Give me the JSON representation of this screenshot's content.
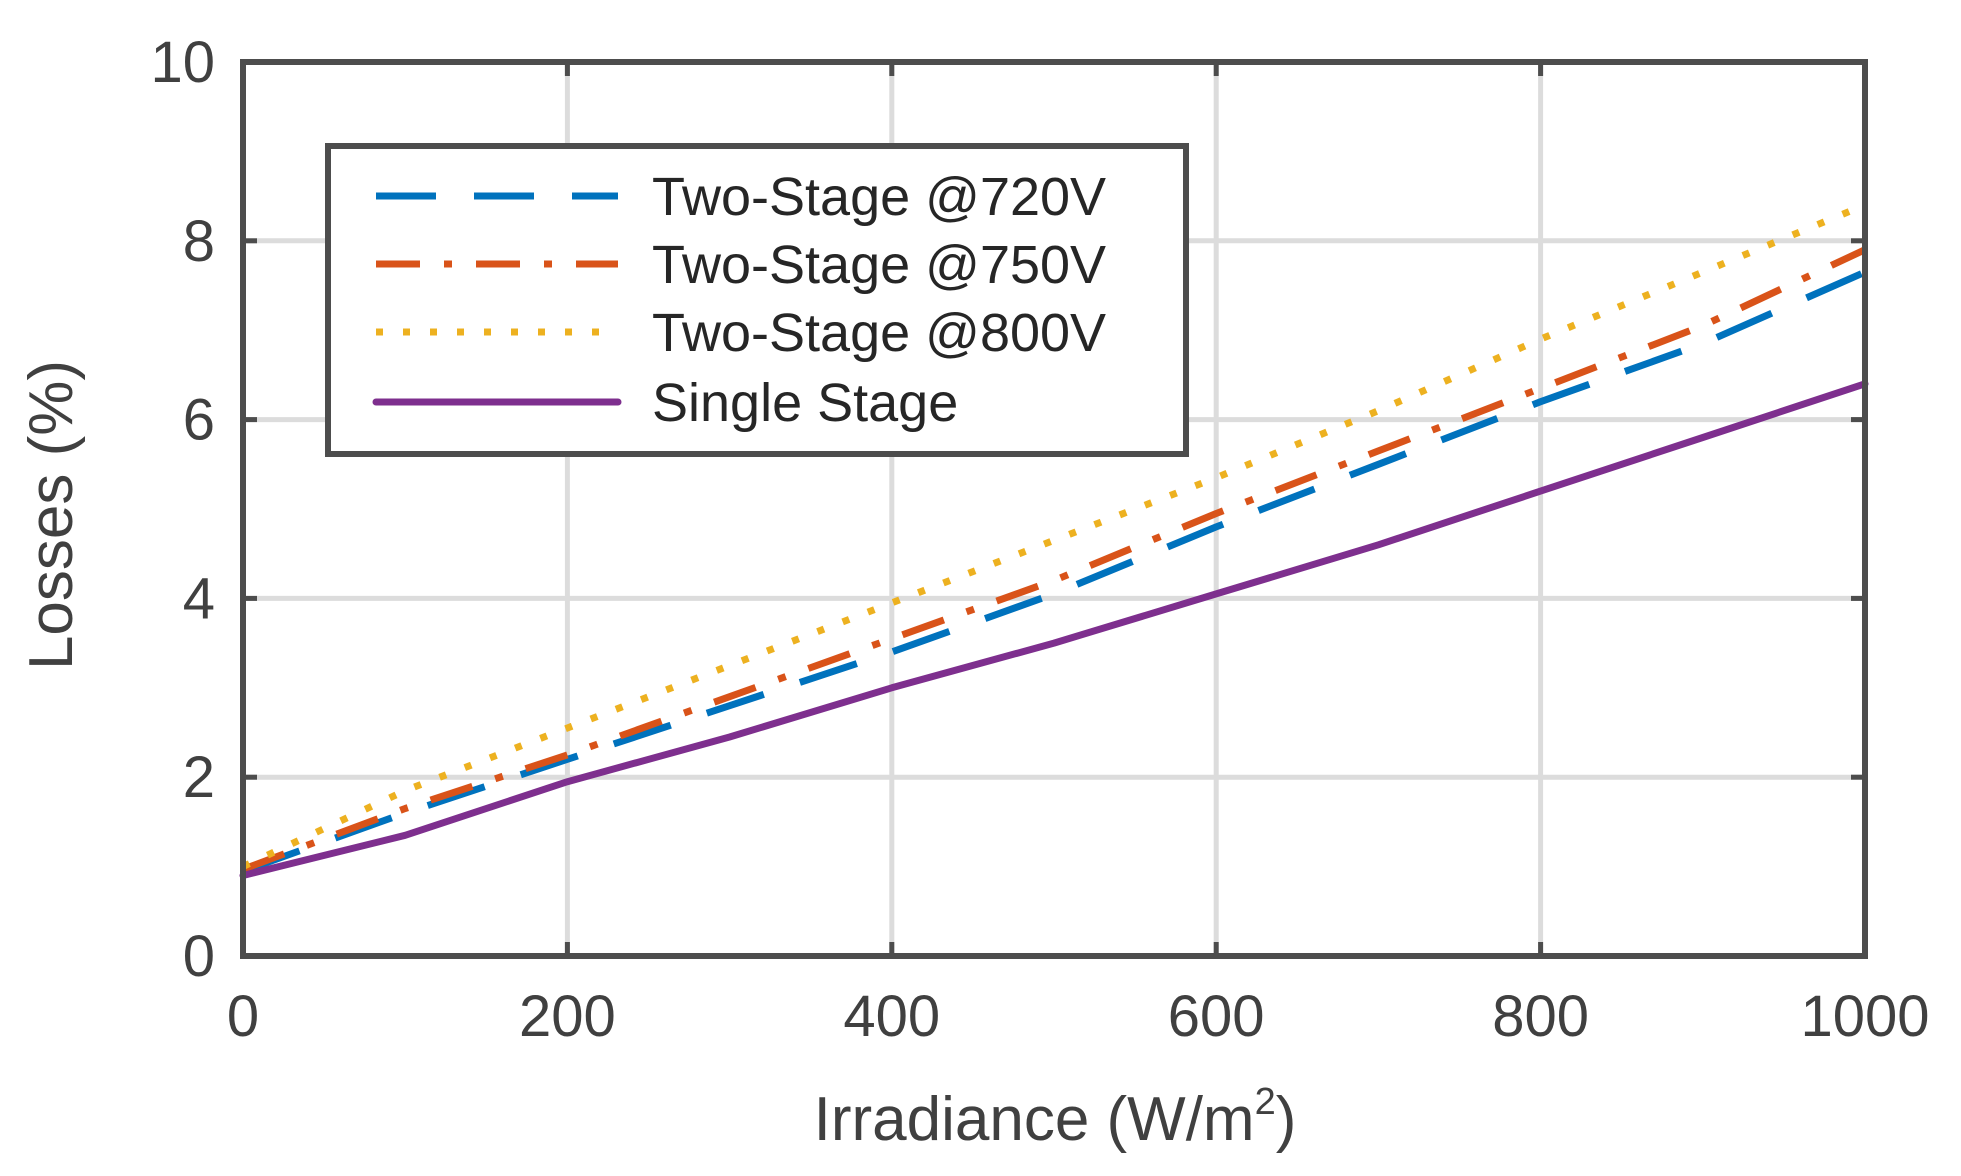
{
  "chart_data": {
    "type": "line",
    "title": "",
    "xlabel_main": "Irradiance (W/m",
    "xlabel_sup": "2",
    "xlabel_close": ")",
    "ylabel": "Losses (%)",
    "xlim": [
      0,
      1000
    ],
    "ylim": [
      0,
      10
    ],
    "x_ticks": [
      0,
      200,
      400,
      600,
      800,
      1000
    ],
    "y_ticks": [
      0,
      2,
      4,
      6,
      8,
      10
    ],
    "x_tick_labels": [
      "0",
      "200",
      "400",
      "600",
      "800",
      "1000"
    ],
    "y_tick_labels": [
      "0",
      "2",
      "4",
      "6",
      "8",
      "10"
    ],
    "grid": true,
    "legend_position": "top-left",
    "x": [
      0,
      100,
      200,
      300,
      400,
      500,
      600,
      700,
      800,
      900,
      1000
    ],
    "series": [
      {
        "name": "Two-Stage @720V",
        "color": "#0072BD",
        "style": "dashed",
        "values": [
          0.95,
          1.6,
          2.2,
          2.8,
          3.4,
          4.05,
          4.8,
          5.5,
          6.2,
          6.85,
          7.65
        ]
      },
      {
        "name": "Two-Stage @750V",
        "color": "#D95319",
        "style": "dashdot",
        "values": [
          0.97,
          1.65,
          2.25,
          2.9,
          3.55,
          4.2,
          4.95,
          5.65,
          6.35,
          7.05,
          7.9
        ]
      },
      {
        "name": "Two-Stage @800V",
        "color": "#EDB120",
        "style": "dotted",
        "values": [
          1.0,
          1.85,
          2.55,
          3.25,
          3.95,
          4.65,
          5.35,
          6.1,
          6.9,
          7.65,
          8.4
        ]
      },
      {
        "name": "Single Stage",
        "color": "#7E2F8E",
        "style": "solid",
        "values": [
          0.9,
          1.35,
          1.95,
          2.45,
          3.0,
          3.5,
          4.05,
          4.6,
          5.2,
          5.8,
          6.4
        ]
      }
    ]
  }
}
